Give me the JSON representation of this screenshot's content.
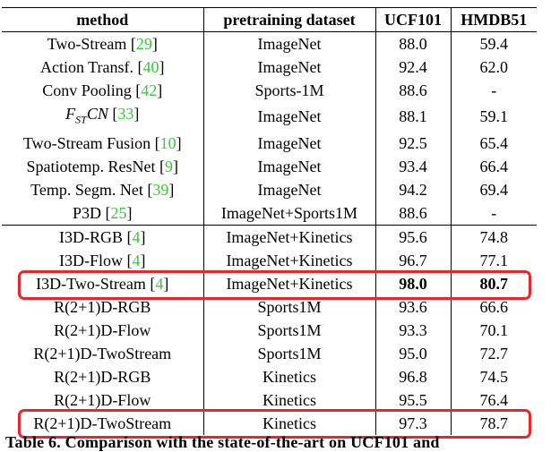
{
  "headers": [
    "method",
    "pretraining dataset",
    "UCF101",
    "HMDB51"
  ],
  "rows": [
    {
      "method": "Two-Stream",
      "ref": "29",
      "dataset": "ImageNet",
      "ucf": "88.0",
      "hmdb": "59.4"
    },
    {
      "method": "Action Transf.",
      "ref": "40",
      "dataset": "ImageNet",
      "ucf": "92.4",
      "hmdb": "62.0"
    },
    {
      "method": "Conv Pooling",
      "ref": "42",
      "dataset": "Sports-1M",
      "ucf": "88.6",
      "hmdb": "-"
    },
    {
      "method": "F",
      "method_sub": "ST",
      "method_tail": "CN",
      "ref": "33",
      "dataset": "ImageNet",
      "ucf": "88.1",
      "hmdb": "59.1"
    },
    {
      "method": "Two-Stream Fusion",
      "ref": "10",
      "dataset": "ImageNet",
      "ucf": "92.5",
      "hmdb": "65.4"
    },
    {
      "method": "Spatiotemp. ResNet",
      "ref": "9",
      "dataset": "ImageNet",
      "ucf": "93.4",
      "hmdb": "66.4"
    },
    {
      "method": "Temp. Segm. Net",
      "ref": "39",
      "dataset": "ImageNet",
      "ucf": "94.2",
      "hmdb": "69.4"
    },
    {
      "method": "P3D",
      "ref": "25",
      "dataset": "ImageNet+Sports1M",
      "ucf": "88.6",
      "hmdb": "-"
    },
    {
      "method": "I3D-RGB",
      "ref": "4",
      "dataset": "ImageNet+Kinetics",
      "ucf": "95.6",
      "hmdb": "74.8"
    },
    {
      "method": "I3D-Flow",
      "ref": "4",
      "dataset": "ImageNet+Kinetics",
      "ucf": "96.7",
      "hmdb": "77.1"
    },
    {
      "method": "I3D-Two-Stream",
      "ref": "4",
      "dataset": "ImageNet+Kinetics",
      "ucf": "98.0",
      "hmdb": "80.7"
    },
    {
      "method": "R(2+1)D-RGB",
      "ref": "",
      "dataset": "Sports1M",
      "ucf": "93.6",
      "hmdb": "66.6"
    },
    {
      "method": "R(2+1)D-Flow",
      "ref": "",
      "dataset": "Sports1M",
      "ucf": "93.3",
      "hmdb": "70.1"
    },
    {
      "method": "R(2+1)D-TwoStream",
      "ref": "",
      "dataset": "Sports1M",
      "ucf": "95.0",
      "hmdb": "72.7"
    },
    {
      "method": "R(2+1)D-RGB",
      "ref": "",
      "dataset": "Kinetics",
      "ucf": "96.8",
      "hmdb": "74.5"
    },
    {
      "method": "R(2+1)D-Flow",
      "ref": "",
      "dataset": "Kinetics",
      "ucf": "95.5",
      "hmdb": "76.4"
    },
    {
      "method": "R(2+1)D-TwoStream",
      "ref": "",
      "dataset": "Kinetics",
      "ucf": "97.3",
      "hmdb": "78.7"
    }
  ],
  "caption": "Table 6. Comparison with the state-of-the-art on UCF101 and",
  "colors": {
    "ref_link": "#33cc33",
    "highlight_box": "#e8262c"
  }
}
